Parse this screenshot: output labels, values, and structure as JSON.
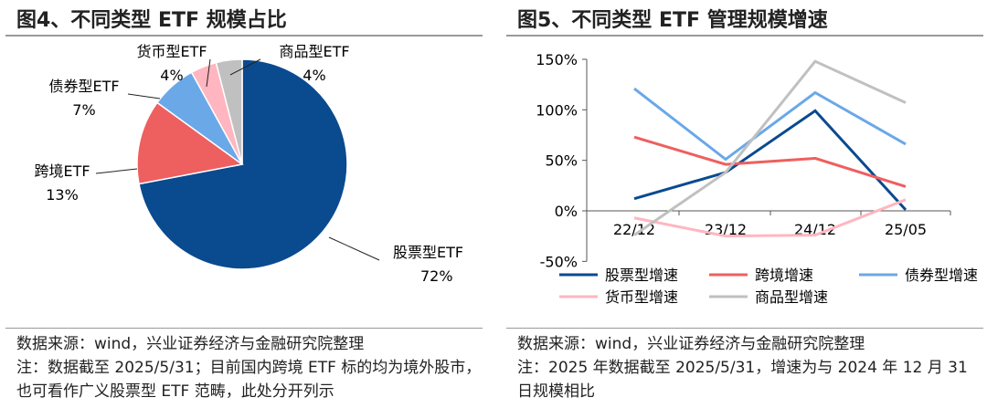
{
  "left": {
    "title": "图4、不同类型 ETF 规模占比",
    "source": "数据来源：wind，兴业证券经济与金融研究院整理",
    "note": "注：数据截至 2025/5/31；目前国内跨境 ETF 标的均为境外股市，也可看作广义股票型 ETF 范畴，此处分开列示"
  },
  "right": {
    "title": "图5、不同类型 ETF 管理规模增速",
    "source": "数据来源：wind，兴业证券经济与金融研究院整理",
    "note": "注：2025 年数据截至 2025/5/31，增速为与 2024 年 12 月 31 日规模相比"
  },
  "chart_data": [
    {
      "type": "pie",
      "title": "不同类型 ETF 规模占比",
      "slices": [
        {
          "label": "股票型ETF",
          "value": 72,
          "display": "72%",
          "color": "#0a4a8f"
        },
        {
          "label": "跨境ETF",
          "value": 13,
          "display": "13%",
          "color": "#ee5f5f"
        },
        {
          "label": "债券型ETF",
          "value": 7,
          "display": "7%",
          "color": "#6aa8e8"
        },
        {
          "label": "货币型ETF",
          "value": 4,
          "display": "4%",
          "color": "#ffb6c1"
        },
        {
          "label": "商品型ETF",
          "value": 4,
          "display": "4%",
          "color": "#c0c0c0"
        }
      ]
    },
    {
      "type": "line",
      "title": "不同类型 ETF 管理规模增速",
      "ylim": [
        -50,
        150
      ],
      "yticks": [
        "-50%",
        "0%",
        "50%",
        "100%",
        "150%"
      ],
      "ytick_values": [
        -50,
        0,
        50,
        100,
        150
      ],
      "categories": [
        "22/12",
        "23/12",
        "24/12",
        "25/05"
      ],
      "legend": "bottom",
      "series": [
        {
          "name": "股票型增速",
          "color": "#0a4a8f",
          "values": [
            12,
            38,
            99,
            1
          ]
        },
        {
          "name": "跨境增速",
          "color": "#ee5f5f",
          "values": [
            73,
            46,
            52,
            24
          ]
        },
        {
          "name": "债券型增速",
          "color": "#6aa8e8",
          "values": [
            121,
            51,
            117,
            66
          ]
        },
        {
          "name": "货币型增速",
          "color": "#ffb6c1",
          "values": [
            -7,
            -25,
            -24,
            11
          ]
        },
        {
          "name": "商品型增速",
          "color": "#c0c0c0",
          "values": [
            -24,
            38,
            148,
            107
          ]
        }
      ]
    }
  ]
}
